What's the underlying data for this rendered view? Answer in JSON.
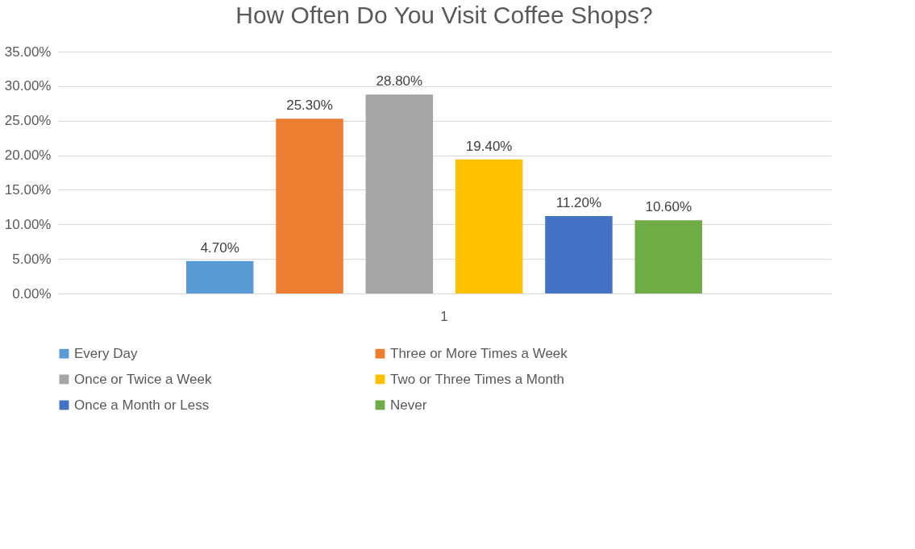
{
  "chart_data": {
    "type": "bar",
    "title": "How Often Do You Visit Coffee Shops?",
    "categories": [
      "1"
    ],
    "series": [
      {
        "name": "Every Day",
        "color": "#5b9bd5",
        "values": [
          4.7
        ],
        "value_labels": [
          "4.70%"
        ]
      },
      {
        "name": "Three or More Times a Week",
        "color": "#ed7d31",
        "values": [
          25.3
        ],
        "value_labels": [
          "25.30%"
        ]
      },
      {
        "name": "Once or Twice a Week",
        "color": "#a5a5a5",
        "values": [
          28.8
        ],
        "value_labels": [
          "28.80%"
        ]
      },
      {
        "name": "Two or Three Times a Month",
        "color": "#ffc000",
        "values": [
          19.4
        ],
        "value_labels": [
          "19.40%"
        ]
      },
      {
        "name": "Once a Month or Less",
        "color": "#4472c4",
        "values": [
          11.2
        ],
        "value_labels": [
          "11.20%"
        ]
      },
      {
        "name": "Never",
        "color": "#70ad47",
        "values": [
          10.6
        ],
        "value_labels": [
          "10.60%"
        ]
      }
    ],
    "ylim": [
      0,
      35
    ],
    "yticks": [
      {
        "value": 0,
        "label": "0.00%"
      },
      {
        "value": 5,
        "label": "5.00%"
      },
      {
        "value": 10,
        "label": "10.00%"
      },
      {
        "value": 15,
        "label": "15.00%"
      },
      {
        "value": 20,
        "label": "20.00%"
      },
      {
        "value": 25,
        "label": "25.00%"
      },
      {
        "value": 30,
        "label": "30.00%"
      },
      {
        "value": 35,
        "label": "35.00%"
      }
    ],
    "grid": "y",
    "legend": "bottom"
  }
}
